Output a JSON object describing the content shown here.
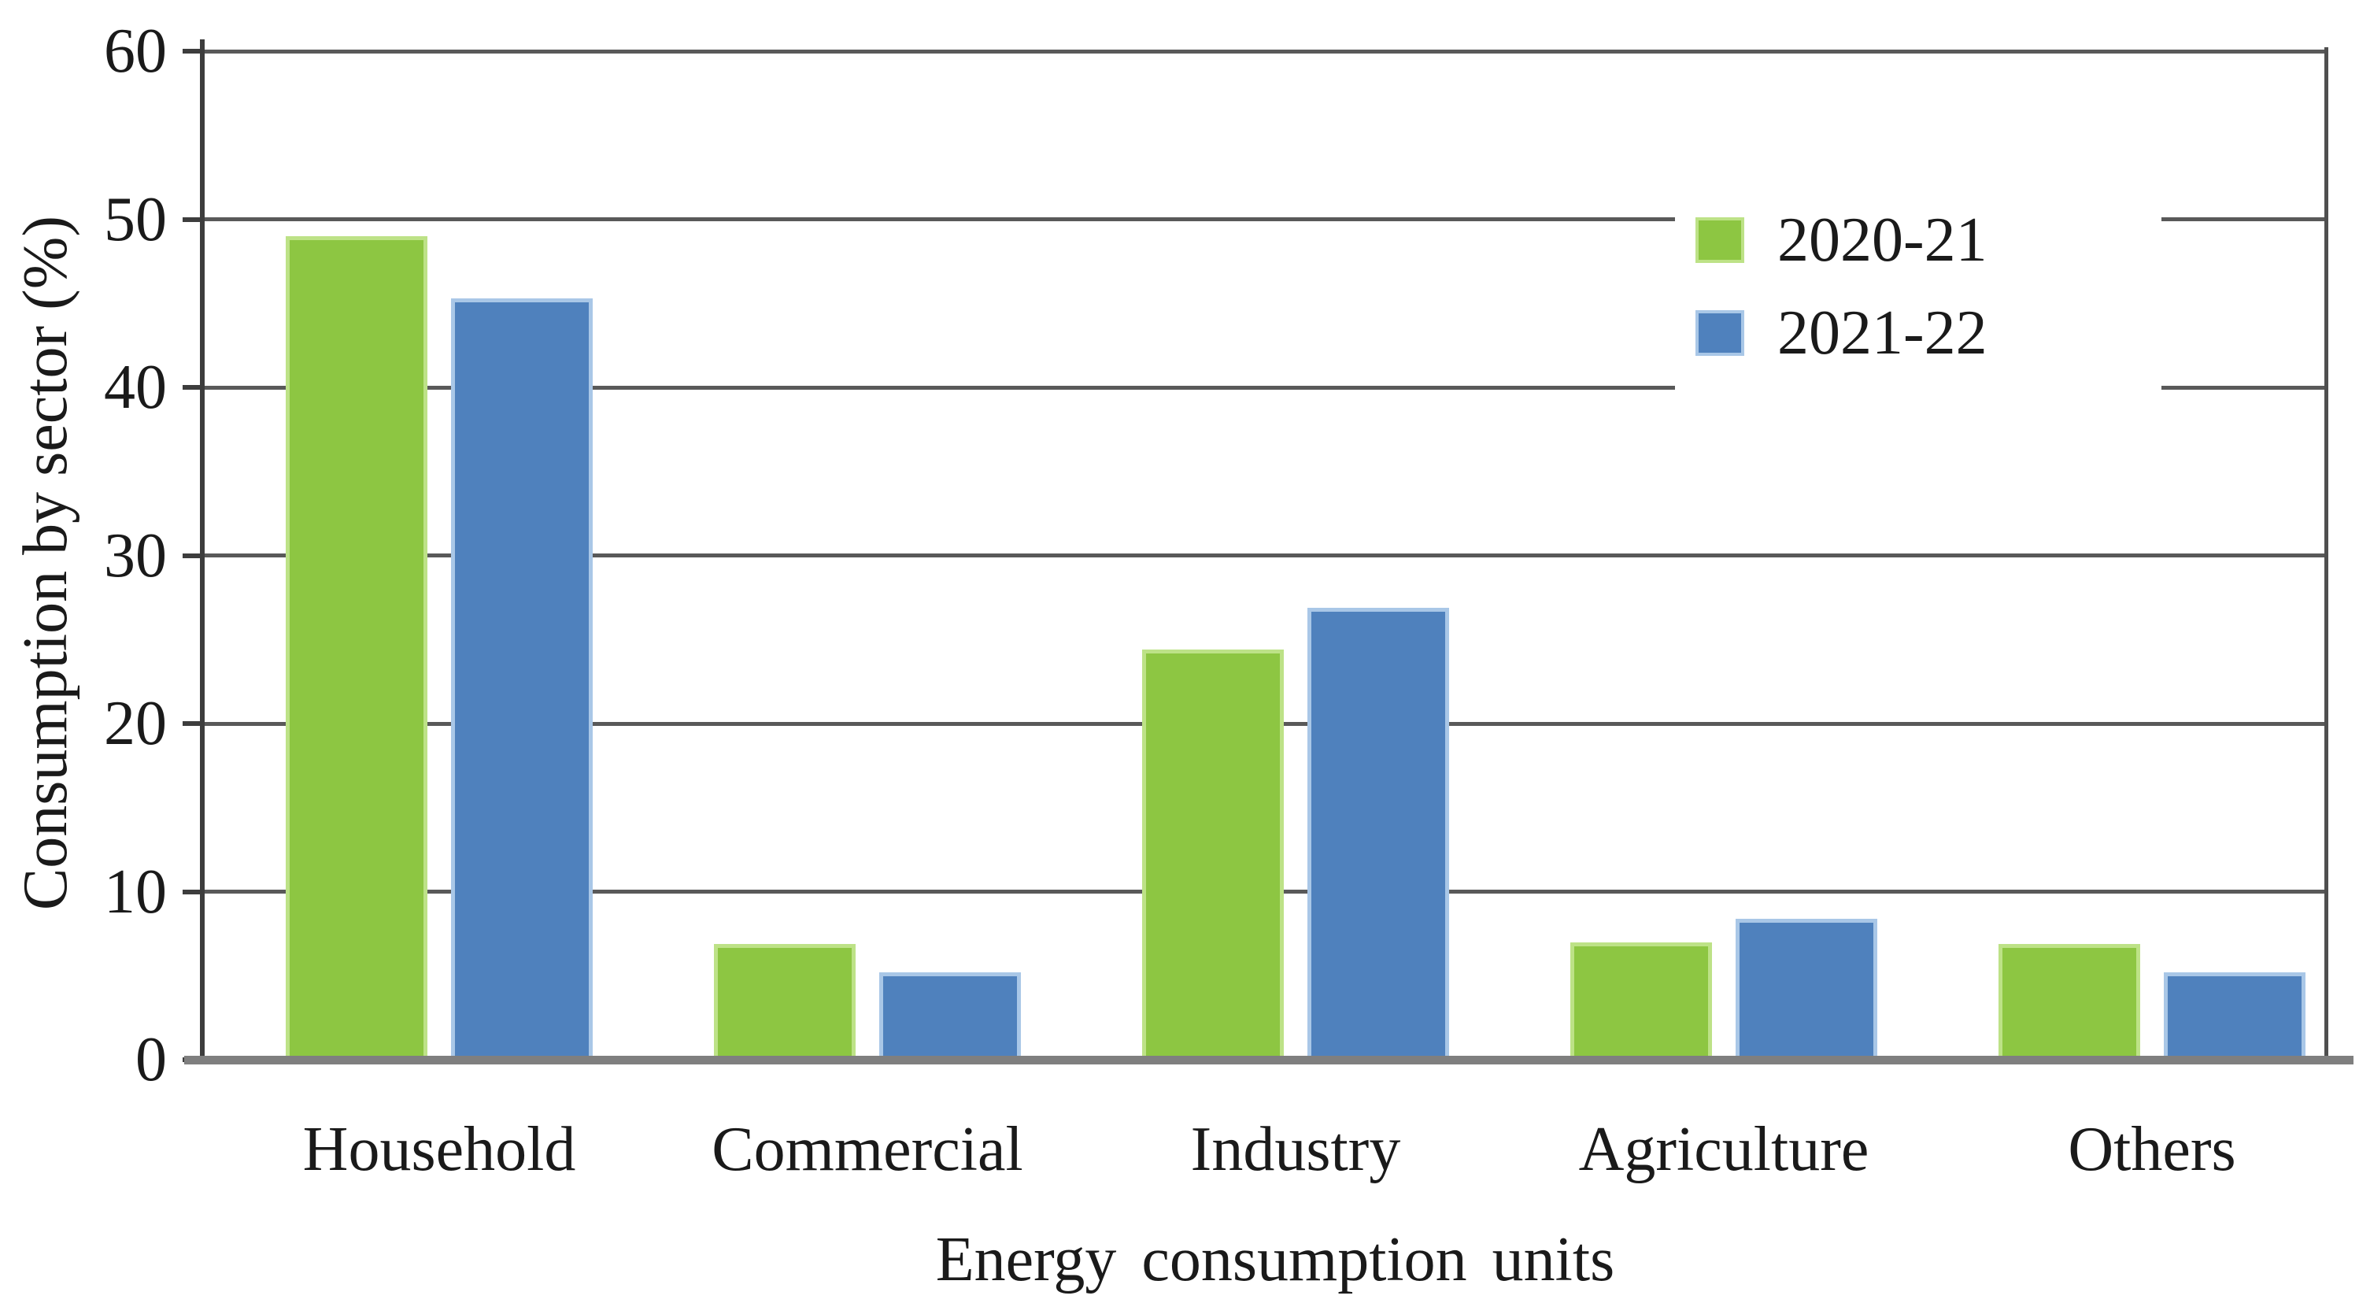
{
  "chart_data": {
    "type": "bar",
    "title": "",
    "xlabel": "Energy consumption units",
    "ylabel": "Consumption by sector (%)",
    "categories": [
      "Household",
      "Commercial",
      "Industry",
      "Agriculture",
      "Others"
    ],
    "series": [
      {
        "name": "2020-21",
        "color": "#8dc642",
        "edge_color": "#bde287",
        "values": [
          49,
          6.9,
          24.4,
          7,
          6.9
        ]
      },
      {
        "name": "2021-22",
        "color": "#4f81bd",
        "edge_color": "#a9c7e7",
        "values": [
          45.3,
          5.2,
          26.9,
          8.4,
          5.2
        ]
      }
    ],
    "ylim": [
      0,
      60
    ],
    "yticks": [
      0,
      10,
      20,
      30,
      40,
      50,
      60
    ],
    "grid": "horizontal",
    "legend_position": "top-right",
    "colors": {
      "gridline": "#595959",
      "axis": "#3d3d3d",
      "bottom_axis": "#7f7f7f",
      "text": "#1a1a1a",
      "background": "#ffffff"
    }
  }
}
